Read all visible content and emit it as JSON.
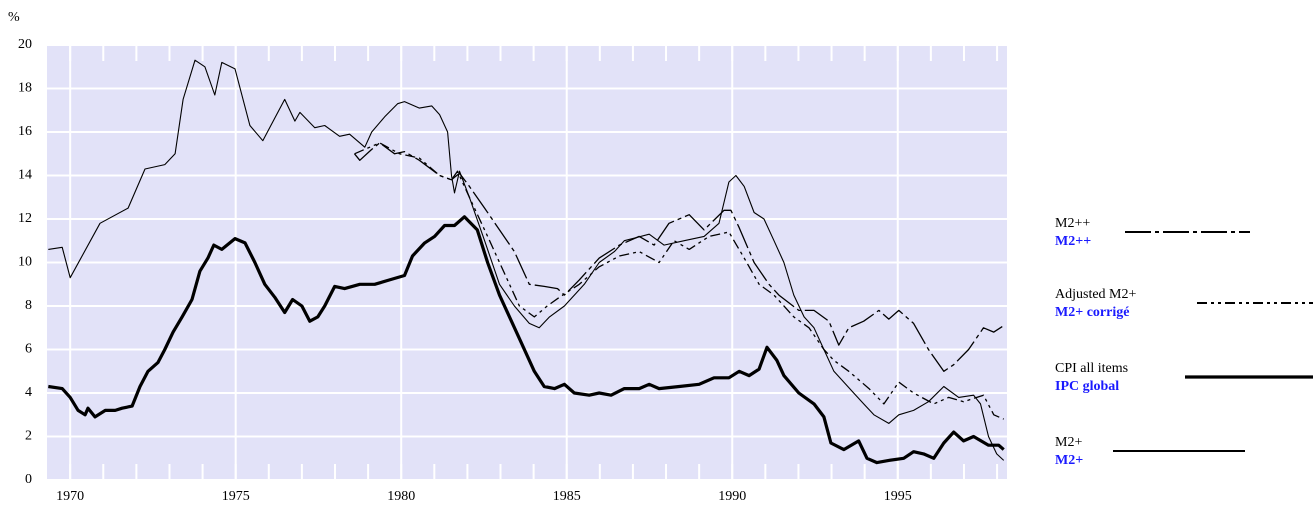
{
  "chart_data": {
    "type": "line",
    "y_label": "%",
    "xlim": [
      1969.3,
      1998.3
    ],
    "xticks": [
      1970,
      1975,
      1980,
      1985,
      1990,
      1995
    ],
    "xminorticks": [
      1970,
      1971,
      1972,
      1973,
      1974,
      1975,
      1976,
      1977,
      1978,
      1979,
      1980,
      1981,
      1982,
      1983,
      1984,
      1985,
      1986,
      1987,
      1988,
      1989,
      1990,
      1991,
      1992,
      1993,
      1994,
      1995,
      1996,
      1997,
      1998
    ],
    "ylim": [
      0,
      20
    ],
    "yticks": [
      0,
      2,
      4,
      6,
      8,
      10,
      12,
      14,
      16,
      18,
      20
    ],
    "grid": true,
    "background": "#e2e2f8",
    "legend_position": "right",
    "series": [
      {
        "name": "M2++",
        "name_fr": "M2++",
        "color": "#000000",
        "style": "dash-dot",
        "width": 1.3,
        "x": [
          1978.59,
          1978.75,
          1979.11,
          1979.35,
          1979.8,
          1980.1,
          1980.55,
          1981.16,
          1981.52,
          1981.76,
          1982.06,
          1982.52,
          1982.97,
          1983.42,
          1983.87,
          1984.32,
          1984.72,
          1984.93,
          1985.38,
          1985.98,
          1986.59,
          1987.19,
          1987.64,
          1988.09,
          1988.7,
          1989.15,
          1989.75,
          1989.96,
          1990.21,
          1990.66,
          1991.11,
          1991.41,
          1992.01,
          1992.47,
          1992.92,
          1993.22,
          1993.52,
          1993.97,
          1994.43,
          1994.73,
          1995.03,
          1995.48,
          1995.93,
          1996.39,
          1996.69,
          1997.14,
          1997.59,
          1997.9,
          1998.2
        ],
        "values": [
          15.0,
          14.7,
          15.2,
          15.5,
          15.0,
          15.1,
          14.7,
          14.0,
          13.8,
          14.1,
          13.5,
          12.5,
          11.5,
          10.5,
          9.0,
          8.9,
          8.8,
          8.5,
          9.2,
          10.2,
          10.8,
          11.2,
          10.8,
          11.8,
          12.2,
          11.5,
          12.4,
          12.4,
          11.6,
          10.0,
          9.0,
          8.5,
          7.8,
          7.8,
          7.3,
          6.2,
          7.0,
          7.3,
          7.8,
          7.4,
          7.8,
          7.2,
          6.0,
          5.0,
          5.3,
          6.0,
          7.0,
          6.8,
          7.1
        ]
      },
      {
        "name": "Adjusted M2+",
        "name_fr": "M2+ corrigé",
        "color": "#000000",
        "style": "dash-dot-dot",
        "width": 1.3,
        "x": [
          1978.59,
          1979.35,
          1979.95,
          1980.55,
          1981.16,
          1981.52,
          1981.7,
          1982.06,
          1982.67,
          1983.12,
          1983.57,
          1984.02,
          1984.41,
          1984.78,
          1985.38,
          1985.98,
          1986.59,
          1987.19,
          1987.79,
          1988.24,
          1988.7,
          1989.3,
          1989.9,
          1990.36,
          1990.81,
          1991.26,
          1991.86,
          1992.32,
          1992.77,
          1993.07,
          1993.52,
          1994.13,
          1994.58,
          1995.03,
          1995.48,
          1996.09,
          1996.54,
          1996.99,
          1997.59,
          1997.9,
          1998.2
        ],
        "values": [
          15.0,
          15.5,
          15.0,
          14.8,
          14.0,
          13.8,
          14.2,
          13.0,
          11.0,
          9.5,
          8.0,
          7.5,
          8.0,
          8.4,
          9.0,
          9.8,
          10.3,
          10.5,
          10.0,
          11.0,
          10.6,
          11.2,
          11.4,
          10.2,
          9.0,
          8.5,
          7.5,
          7.0,
          6.0,
          5.5,
          5.0,
          4.2,
          3.5,
          4.5,
          4.0,
          3.5,
          3.8,
          3.6,
          3.9,
          3.0,
          2.8
        ]
      },
      {
        "name": "CPI all items",
        "name_fr": "IPC global",
        "color": "#000000",
        "style": "solid",
        "width": 3.2,
        "x": [
          1969.34,
          1969.76,
          1970.0,
          1970.24,
          1970.45,
          1970.54,
          1970.75,
          1971.06,
          1971.36,
          1971.57,
          1971.87,
          1972.11,
          1972.35,
          1972.65,
          1972.86,
          1973.11,
          1973.38,
          1973.68,
          1973.92,
          1974.16,
          1974.34,
          1974.58,
          1974.98,
          1975.28,
          1975.58,
          1975.88,
          1976.18,
          1976.48,
          1976.72,
          1977.0,
          1977.24,
          1977.48,
          1977.69,
          1977.99,
          1978.29,
          1978.75,
          1979.2,
          1979.65,
          1980.1,
          1980.34,
          1980.71,
          1981.01,
          1981.31,
          1981.61,
          1981.91,
          1982.3,
          1982.61,
          1982.97,
          1983.27,
          1983.57,
          1984.02,
          1984.32,
          1984.63,
          1984.93,
          1985.23,
          1985.68,
          1985.98,
          1986.34,
          1986.74,
          1987.19,
          1987.49,
          1987.79,
          1988.4,
          1989.0,
          1989.45,
          1989.9,
          1990.21,
          1990.51,
          1990.81,
          1991.05,
          1991.35,
          1991.56,
          1992.01,
          1992.47,
          1992.77,
          1992.98,
          1993.37,
          1993.82,
          1994.07,
          1994.37,
          1994.73,
          1995.18,
          1995.48,
          1995.78,
          1996.09,
          1996.39,
          1996.69,
          1996.99,
          1997.29,
          1997.74,
          1998.05,
          1998.2
        ],
        "values": [
          4.3,
          4.2,
          3.8,
          3.2,
          3.0,
          3.3,
          2.9,
          3.2,
          3.2,
          3.3,
          3.4,
          4.3,
          5.0,
          5.4,
          6.0,
          6.8,
          7.5,
          8.3,
          9.6,
          10.2,
          10.8,
          10.6,
          11.1,
          10.9,
          10.0,
          9.0,
          8.4,
          7.7,
          8.3,
          8.0,
          7.3,
          7.5,
          8.0,
          8.9,
          8.8,
          9.0,
          9.0,
          9.2,
          9.4,
          10.3,
          10.9,
          11.2,
          11.7,
          11.7,
          12.1,
          11.5,
          10.0,
          8.5,
          7.5,
          6.5,
          5.0,
          4.3,
          4.2,
          4.4,
          4.0,
          3.9,
          4.0,
          3.9,
          4.2,
          4.2,
          4.4,
          4.2,
          4.3,
          4.4,
          4.7,
          4.7,
          5.0,
          4.8,
          5.1,
          6.1,
          5.5,
          4.8,
          4.0,
          3.5,
          2.9,
          1.7,
          1.4,
          1.8,
          1.0,
          0.8,
          0.9,
          1.0,
          1.3,
          1.2,
          1.0,
          1.7,
          2.2,
          1.8,
          2.0,
          1.6,
          1.6,
          1.4
        ]
      },
      {
        "name": "M2+",
        "name_fr": "M2+",
        "color": "#000000",
        "style": "solid",
        "width": 1.1,
        "x": [
          1969.34,
          1969.76,
          1970.0,
          1970.9,
          1971.75,
          1972.26,
          1972.86,
          1973.17,
          1973.41,
          1973.77,
          1974.07,
          1974.37,
          1974.58,
          1974.98,
          1975.43,
          1975.82,
          1976.48,
          1976.79,
          1976.94,
          1977.39,
          1977.69,
          1978.14,
          1978.44,
          1978.9,
          1979.11,
          1979.5,
          1979.89,
          1980.1,
          1980.55,
          1980.92,
          1981.16,
          1981.4,
          1981.52,
          1981.61,
          1981.76,
          1982.06,
          1982.52,
          1982.97,
          1983.42,
          1983.87,
          1984.17,
          1984.48,
          1984.93,
          1985.53,
          1985.98,
          1986.44,
          1986.74,
          1987.49,
          1987.94,
          1988.55,
          1989.15,
          1989.6,
          1989.9,
          1990.11,
          1990.36,
          1990.66,
          1990.96,
          1991.26,
          1991.56,
          1991.86,
          1992.17,
          1992.47,
          1992.77,
          1993.07,
          1993.37,
          1993.67,
          1993.97,
          1994.28,
          1994.73,
          1995.03,
          1995.48,
          1995.93,
          1996.39,
          1996.84,
          1997.29,
          1997.5,
          1997.74,
          1997.99,
          1998.2
        ],
        "values": [
          10.6,
          10.7,
          9.3,
          11.8,
          12.5,
          14.3,
          14.5,
          15.0,
          17.5,
          19.3,
          19.0,
          17.7,
          19.2,
          18.9,
          16.3,
          15.6,
          17.5,
          16.5,
          16.9,
          16.2,
          16.3,
          15.8,
          15.9,
          15.3,
          16.0,
          16.7,
          17.3,
          17.4,
          17.1,
          17.2,
          16.8,
          16.0,
          14.0,
          13.2,
          14.2,
          13.0,
          11.0,
          9.0,
          8.0,
          7.2,
          7.0,
          7.5,
          8.0,
          9.0,
          10.0,
          10.5,
          11.0,
          11.3,
          10.8,
          11.0,
          11.2,
          11.8,
          13.7,
          14.0,
          13.5,
          12.3,
          12.0,
          11.0,
          10.0,
          8.5,
          7.5,
          7.0,
          6.0,
          5.0,
          4.5,
          4.0,
          3.5,
          3.0,
          2.6,
          3.0,
          3.2,
          3.6,
          4.3,
          3.8,
          3.9,
          3.5,
          2.0,
          1.2,
          0.9
        ]
      }
    ]
  }
}
